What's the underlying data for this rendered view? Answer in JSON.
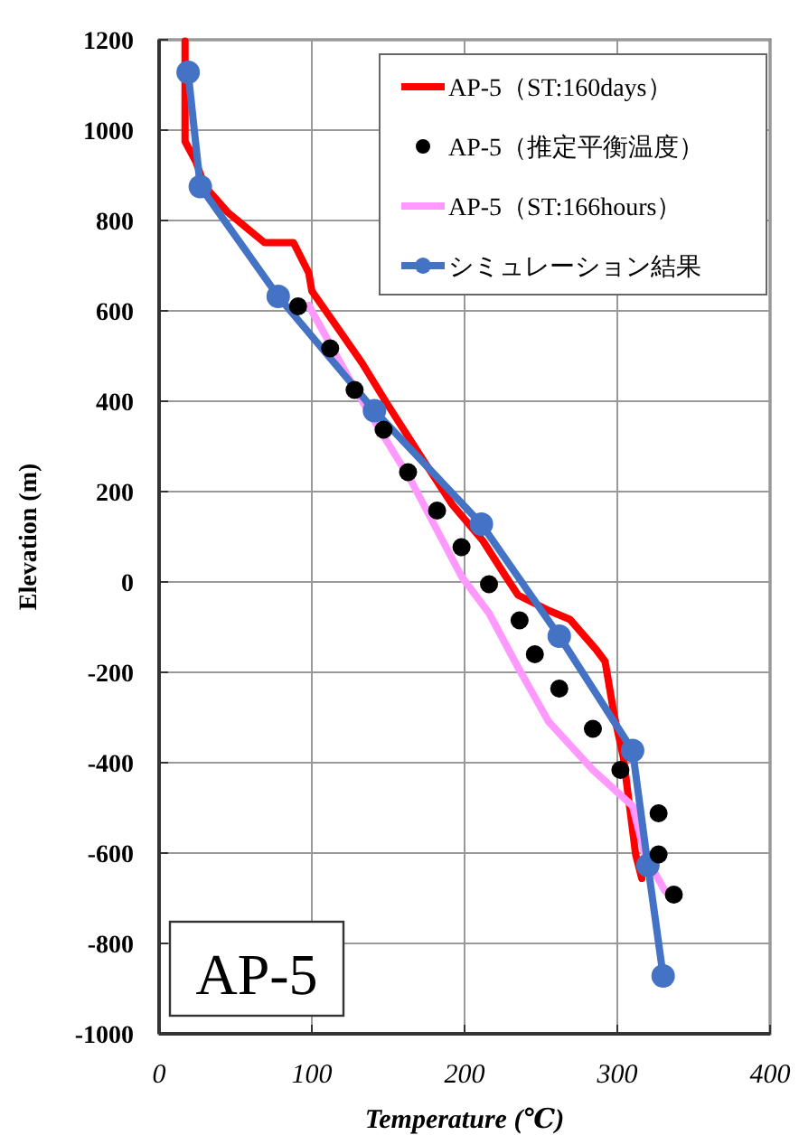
{
  "chart_data": {
    "type": "line",
    "xlabel": "Temperature (℃)",
    "ylabel": "Elevation (m)",
    "xlim": [
      0,
      400
    ],
    "xticks": [
      0,
      100,
      200,
      300,
      400
    ],
    "ylim": [
      -1000,
      1200
    ],
    "yticks": [
      -1000,
      -800,
      -600,
      -400,
      -200,
      0,
      200,
      400,
      600,
      800,
      1000,
      1200
    ],
    "grid": true,
    "legend": "top right",
    "annotations": [
      "AP-5"
    ],
    "series": [
      {
        "name": "AP-5（ST:160days）",
        "color": "#ff0000",
        "marker": "none",
        "x": [
          17,
          17,
          24,
          30,
          45,
          69,
          88,
          98,
          100,
          118,
          133,
          149,
          169,
          192,
          212,
          227,
          235,
          255,
          269,
          286,
          292,
          298,
          304,
          308,
          312,
          316
        ],
        "values": [
          1197,
          975,
          931,
          875,
          818,
          751,
          751,
          684,
          644,
          557,
          484,
          396,
          290,
          171,
          91,
          12,
          -29,
          -63,
          -83,
          -149,
          -176,
          -296,
          -389,
          -496,
          -603,
          -656
        ]
      },
      {
        "name": "AP-5（推定平衡温度）",
        "color": "#000000",
        "type": "scatter",
        "marker": "circle",
        "x": [
          91,
          112,
          128,
          147,
          163,
          182,
          198,
          216,
          236,
          246,
          262,
          284,
          302,
          327,
          327,
          337
        ],
        "values": [
          610,
          517,
          425,
          337,
          243,
          158,
          77,
          -5,
          -85,
          -160,
          -236,
          -325,
          -416,
          -512,
          -603,
          -692
        ]
      },
      {
        "name": "AP-5（ST:166hours）",
        "color": "#ff99ff",
        "marker": "none",
        "x": [
          98,
          129,
          165,
          198,
          216,
          235,
          255,
          284,
          310,
          318,
          331
        ],
        "values": [
          612,
          422,
          224,
          12,
          -69,
          -189,
          -309,
          -416,
          -496,
          -603,
          -683
        ]
      },
      {
        "name": "シミュレーション結果",
        "color": "#4472c4",
        "marker": "circle",
        "x": [
          19,
          27,
          78,
          141,
          211,
          262,
          310,
          320,
          330
        ],
        "values": [
          1128,
          875,
          632,
          379,
          128,
          -120,
          -373,
          -627,
          -872
        ]
      }
    ]
  }
}
